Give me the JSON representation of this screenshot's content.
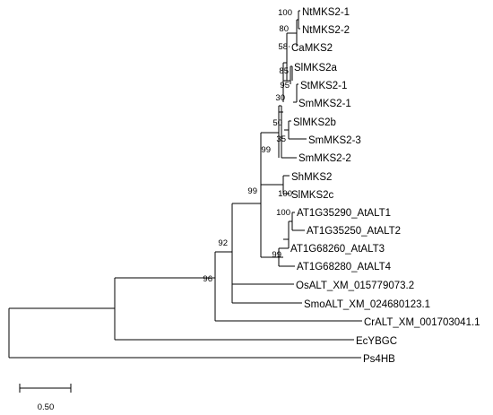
{
  "tree": {
    "leaves": [
      "NtMKS2-1",
      "NtMKS2-2",
      "CaMKS2",
      "SlMKS2a",
      "StMKS2-1",
      "SmMKS2-1",
      "SlMKS2b",
      "SmMKS2-3",
      "SmMKS2-2",
      "ShMKS2",
      "SlMKS2c",
      "AT1G35290_AtALT1",
      "AT1G35250_AtALT2",
      "AT1G68260_AtALT3",
      "AT1G68280_AtALT4",
      "OsALT_XM_015779073.2",
      "SmoALT_XM_024680123.1",
      "CrALT_XM_001703041.1",
      "EcYBGC",
      "Ps4HB"
    ],
    "bootstrap": [
      "100",
      "80",
      "58",
      "85",
      "95",
      "30",
      "50",
      "35",
      "99",
      "100",
      "100",
      "99",
      "99",
      "92",
      "96"
    ]
  },
  "scale_bar": {
    "value": 0.5,
    "label": "0.50"
  }
}
